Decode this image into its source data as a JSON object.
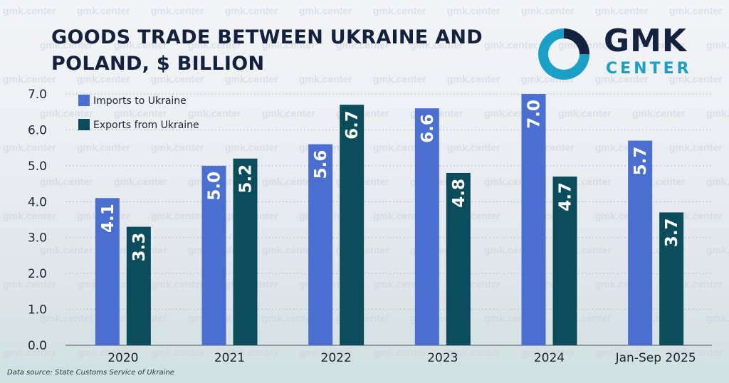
{
  "title_lines": [
    "GOODS TRADE BETWEEN UKRAINE AND",
    "POLAND, $ BILLION"
  ],
  "logo": {
    "top": "GMK",
    "bottom": "CENTER"
  },
  "watermark": "gmk.center",
  "source": "Data source: State Customs Service of Ukraine",
  "colors": {
    "imports": "#4a6fd0",
    "exports": "#0a4b5c",
    "title": "#12213d",
    "logo_accent": "#1aa0c6"
  },
  "chart_data": {
    "type": "bar",
    "title": "GOODS TRADE BETWEEN UKRAINE AND POLAND, $ BILLION",
    "categories": [
      "2020",
      "2021",
      "2022",
      "2023",
      "2024",
      "Jan-Sep 2025"
    ],
    "series": [
      {
        "name": "Imports to Ukraine",
        "values": [
          4.1,
          5.0,
          5.6,
          6.6,
          7.0,
          5.7
        ]
      },
      {
        "name": "Exports from Ukraine",
        "values": [
          3.3,
          5.2,
          6.7,
          4.8,
          4.7,
          3.7
        ]
      }
    ],
    "value_labels": {
      "imports": [
        "4.1",
        "5.0",
        "5.6",
        "6.6",
        "7.0",
        "5.7"
      ],
      "exports": [
        "3.3",
        "5.2",
        "6.7",
        "4.8",
        "4.7",
        "3.7"
      ]
    },
    "yticks": [
      "0.0",
      "1.0",
      "2.0",
      "3.0",
      "4.0",
      "5.0",
      "6.0",
      "7.0"
    ],
    "ylim": [
      0,
      7
    ],
    "grid": true,
    "legend": "top-left"
  }
}
